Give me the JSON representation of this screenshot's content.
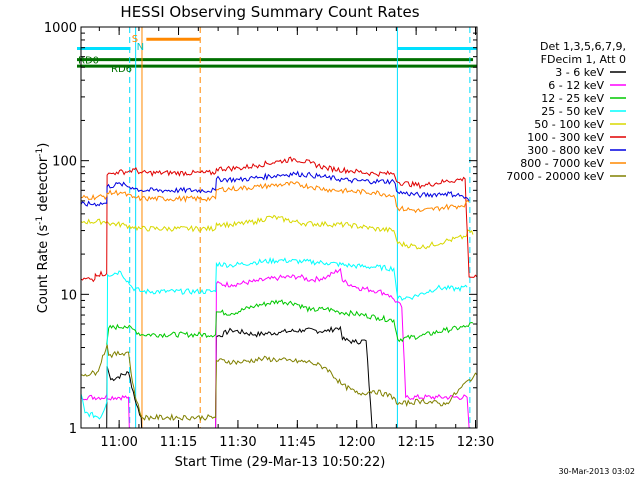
{
  "chart_data": {
    "type": "line",
    "title": "HESSI Observing Summary Count Rates",
    "xlabel": "Start Time (29-Mar-13 10:50:22)",
    "ylabel": "Count Rate (s",
    "ylabel_sup": "-1",
    "ylabel_rest": " detector",
    "ylabel_sup2": "-1",
    "ylabel_close": ")",
    "x_unit": "minutes since 10:50:22",
    "xlim": [
      0,
      100
    ],
    "ylim": [
      1,
      1000
    ],
    "y_scale": "log",
    "x_ticks": [
      {
        "value": 9.63,
        "label": "11:00"
      },
      {
        "value": 24.63,
        "label": "11:15"
      },
      {
        "value": 39.63,
        "label": "11:30"
      },
      {
        "value": 54.63,
        "label": "11:45"
      },
      {
        "value": 69.63,
        "label": "12:00"
      },
      {
        "value": 84.63,
        "label": "12:15"
      },
      {
        "value": 99.63,
        "label": "12:30"
      }
    ],
    "y_ticks": [
      {
        "value": 1,
        "label": "1"
      },
      {
        "value": 10,
        "label": "10"
      },
      {
        "value": 100,
        "label": "100"
      },
      {
        "value": 1000,
        "label": "1000"
      }
    ],
    "legend_header": [
      "Det 1,3,5,6,7,9,",
      "FDecim 1, Att 0"
    ],
    "legend_position": "right",
    "series": [
      {
        "name": "3 - 6 keV",
        "color": "#000000",
        "points": [
          [
            0,
            1
          ],
          [
            6.5,
            1
          ],
          [
            6.6,
            2.9
          ],
          [
            7.5,
            2.3
          ],
          [
            12,
            2.6
          ],
          [
            14,
            1.5
          ],
          [
            15.2,
            1.2
          ],
          [
            15.3,
            1
          ],
          [
            34,
            1
          ],
          [
            34.2,
            4.8
          ],
          [
            38,
            5.4
          ],
          [
            44,
            5.0
          ],
          [
            50,
            5.2
          ],
          [
            56,
            5.4
          ],
          [
            62,
            5.3
          ],
          [
            65.5,
            5.7
          ],
          [
            66,
            4.6
          ],
          [
            69,
            4.4
          ],
          [
            72,
            4.5
          ],
          [
            73.5,
            1
          ],
          [
            100,
            1
          ]
        ]
      },
      {
        "name": "6 - 12 keV",
        "color": "#ff00ff",
        "points": [
          [
            0,
            1.7
          ],
          [
            12,
            1.7
          ],
          [
            12.2,
            1
          ],
          [
            34,
            1
          ],
          [
            34.2,
            12
          ],
          [
            38,
            11.8
          ],
          [
            44,
            12.5
          ],
          [
            50,
            13.3
          ],
          [
            55,
            13.6
          ],
          [
            58,
            12.8
          ],
          [
            62,
            13.4
          ],
          [
            65.5,
            15.5
          ],
          [
            66,
            12.6
          ],
          [
            70,
            11.2
          ],
          [
            75,
            10.6
          ],
          [
            77.5,
            10
          ],
          [
            79,
            9.2
          ],
          [
            81,
            8.0
          ],
          [
            82,
            1.7
          ],
          [
            90,
            1.7
          ],
          [
            97.5,
            1.7
          ],
          [
            98,
            1
          ]
        ]
      },
      {
        "name": "12 - 25 keV",
        "color": "#00c800",
        "points": [
          [
            6.5,
            4.2
          ],
          [
            7,
            5.6
          ],
          [
            11,
            5.8
          ],
          [
            13,
            5.5
          ],
          [
            15.3,
            5.0
          ],
          [
            34,
            5.0
          ],
          [
            34.2,
            7.4
          ],
          [
            38,
            7.2
          ],
          [
            44,
            8.2
          ],
          [
            50,
            8.9
          ],
          [
            54,
            8.6
          ],
          [
            58,
            7.6
          ],
          [
            62,
            7.8
          ],
          [
            65,
            7.4
          ],
          [
            70,
            7.1
          ],
          [
            75,
            6.7
          ],
          [
            79,
            6.4
          ],
          [
            80,
            4.6
          ],
          [
            86,
            4.9
          ],
          [
            92,
            5.4
          ],
          [
            97,
            5.7
          ],
          [
            99,
            6.1
          ]
        ]
      },
      {
        "name": "25 - 50 keV",
        "color": "#00ffff",
        "points": [
          [
            0,
            1.8
          ],
          [
            1,
            1.3
          ],
          [
            5,
            1.2
          ],
          [
            6.6,
            1.6
          ],
          [
            6.7,
            14
          ],
          [
            10,
            14.8
          ],
          [
            13,
            11.2
          ],
          [
            15.3,
            10.5
          ],
          [
            34,
            10.5
          ],
          [
            34.2,
            17
          ],
          [
            38,
            16.5
          ],
          [
            44,
            17.4
          ],
          [
            50,
            18
          ],
          [
            56,
            17.6
          ],
          [
            62,
            17.2
          ],
          [
            68,
            16.4
          ],
          [
            74,
            16
          ],
          [
            79,
            15.6
          ],
          [
            80,
            9.3
          ],
          [
            84,
            9.6
          ],
          [
            90,
            11.2
          ],
          [
            95,
            11
          ],
          [
            97.5,
            11.3
          ]
        ]
      },
      {
        "name": "50 - 100 keV",
        "color": "#d8d800",
        "points": [
          [
            0,
            35
          ],
          [
            6.6,
            35
          ],
          [
            7,
            34
          ],
          [
            11,
            33
          ],
          [
            13,
            32
          ],
          [
            15.3,
            31
          ],
          [
            34,
            31
          ],
          [
            34.2,
            34
          ],
          [
            38,
            33
          ],
          [
            44,
            35
          ],
          [
            48,
            38
          ],
          [
            52,
            36
          ],
          [
            56,
            34
          ],
          [
            62,
            33.5
          ],
          [
            68,
            33
          ],
          [
            74,
            31
          ],
          [
            79,
            30
          ],
          [
            80,
            24
          ],
          [
            86,
            22.5
          ],
          [
            92,
            25
          ],
          [
            97,
            27
          ],
          [
            98,
            30
          ],
          [
            99,
            28
          ]
        ]
      },
      {
        "name": "100 - 300 keV",
        "color": "#e00000",
        "points": [
          [
            0,
            13
          ],
          [
            3.5,
            13
          ],
          [
            3.6,
            14.2
          ],
          [
            6.5,
            14.3
          ],
          [
            6.6,
            78
          ],
          [
            9,
            82
          ],
          [
            12,
            83
          ],
          [
            13.5,
            86
          ],
          [
            15.3,
            81
          ],
          [
            34,
            81
          ],
          [
            34.2,
            87
          ],
          [
            40,
            88
          ],
          [
            45,
            93
          ],
          [
            50,
            99
          ],
          [
            54,
            103
          ],
          [
            58,
            96
          ],
          [
            62,
            88
          ],
          [
            68,
            84
          ],
          [
            74,
            80
          ],
          [
            79,
            80
          ],
          [
            80,
            69
          ],
          [
            86,
            65
          ],
          [
            92,
            70
          ],
          [
            97,
            73
          ],
          [
            98,
            13.5
          ],
          [
            100,
            13.5
          ]
        ]
      },
      {
        "name": "300 - 800 keV",
        "color": "#0000e0",
        "points": [
          [
            0,
            47
          ],
          [
            6.5,
            48
          ],
          [
            6.6,
            64
          ],
          [
            10,
            67
          ],
          [
            13,
            63
          ],
          [
            15.3,
            60
          ],
          [
            34,
            60
          ],
          [
            34.2,
            73
          ],
          [
            40,
            72
          ],
          [
            45,
            75
          ],
          [
            50,
            78
          ],
          [
            54,
            80
          ],
          [
            58,
            78
          ],
          [
            62,
            75
          ],
          [
            68,
            71
          ],
          [
            74,
            70
          ],
          [
            79,
            70
          ],
          [
            80,
            58
          ],
          [
            86,
            55
          ],
          [
            92,
            57
          ],
          [
            96,
            55
          ],
          [
            98,
            50
          ]
        ]
      },
      {
        "name": "800 - 7000 keV",
        "color": "#ff8800",
        "points": [
          [
            0,
            53
          ],
          [
            6.5,
            54
          ],
          [
            6.6,
            57
          ],
          [
            10,
            58
          ],
          [
            13,
            53
          ],
          [
            15.3,
            52
          ],
          [
            34,
            52
          ],
          [
            34.2,
            61
          ],
          [
            40,
            62
          ],
          [
            45,
            64
          ],
          [
            50,
            66
          ],
          [
            54,
            67
          ],
          [
            58,
            64
          ],
          [
            62,
            61
          ],
          [
            68,
            59
          ],
          [
            74,
            58
          ],
          [
            79,
            55
          ],
          [
            80,
            44
          ],
          [
            86,
            42
          ],
          [
            92,
            45
          ],
          [
            96,
            46
          ],
          [
            98,
            49
          ]
        ]
      },
      {
        "name": "7000 - 20000 keV",
        "color": "#808000",
        "points": [
          [
            0,
            2.5
          ],
          [
            4,
            2.6
          ],
          [
            6.6,
            4.2
          ],
          [
            7,
            3.5
          ],
          [
            12,
            3.7
          ],
          [
            13,
            2.2
          ],
          [
            14,
            1.6
          ],
          [
            15.3,
            1.2
          ],
          [
            34,
            1.2
          ],
          [
            34.2,
            3.2
          ],
          [
            40,
            3.1
          ],
          [
            46,
            3.3
          ],
          [
            52,
            3.2
          ],
          [
            58,
            3.1
          ],
          [
            62,
            2.8
          ],
          [
            66,
            2.1
          ],
          [
            70,
            1.8
          ],
          [
            74,
            1.9
          ],
          [
            79,
            1.7
          ],
          [
            80,
            1.5
          ],
          [
            86,
            1.6
          ],
          [
            92,
            1.5
          ],
          [
            98,
            2.3
          ],
          [
            100,
            2.5
          ]
        ]
      }
    ],
    "annotations": [
      {
        "label": "RD0",
        "color": "#007000"
      },
      {
        "label": "RD6",
        "color": "#007000"
      },
      {
        "label": "S",
        "color": "#ff8800"
      },
      {
        "label": "N",
        "color": "#00c8c8"
      }
    ],
    "timestamp": "30-Mar-2013 03:02"
  },
  "annotation_lines": {
    "green_top": {
      "x0": -2,
      "x1": 99,
      "y": 570
    },
    "green_bottom": {
      "x0": -2,
      "x1": 100,
      "y": 510
    },
    "cyan_top_left": {
      "x0": -4,
      "x1": 12.5,
      "y": 690
    },
    "cyan_top_right": {
      "x0": 80,
      "x1": 100,
      "y": 690
    },
    "orange_top": {
      "x0": 16.5,
      "x1": 30,
      "y": 810
    },
    "vlines": [
      {
        "x": 12.3,
        "color": "#00e0ff",
        "dash": true
      },
      {
        "x": 13.8,
        "color": "#00e0ff",
        "dash": false
      },
      {
        "x": 15.4,
        "color": "#ff8800",
        "dash": false
      },
      {
        "x": 30.1,
        "color": "#ff8800",
        "dash": true
      },
      {
        "x": 79.9,
        "color": "#00e0ff",
        "dash": false
      },
      {
        "x": 98.2,
        "color": "#00e0ff",
        "dash": true
      }
    ]
  }
}
